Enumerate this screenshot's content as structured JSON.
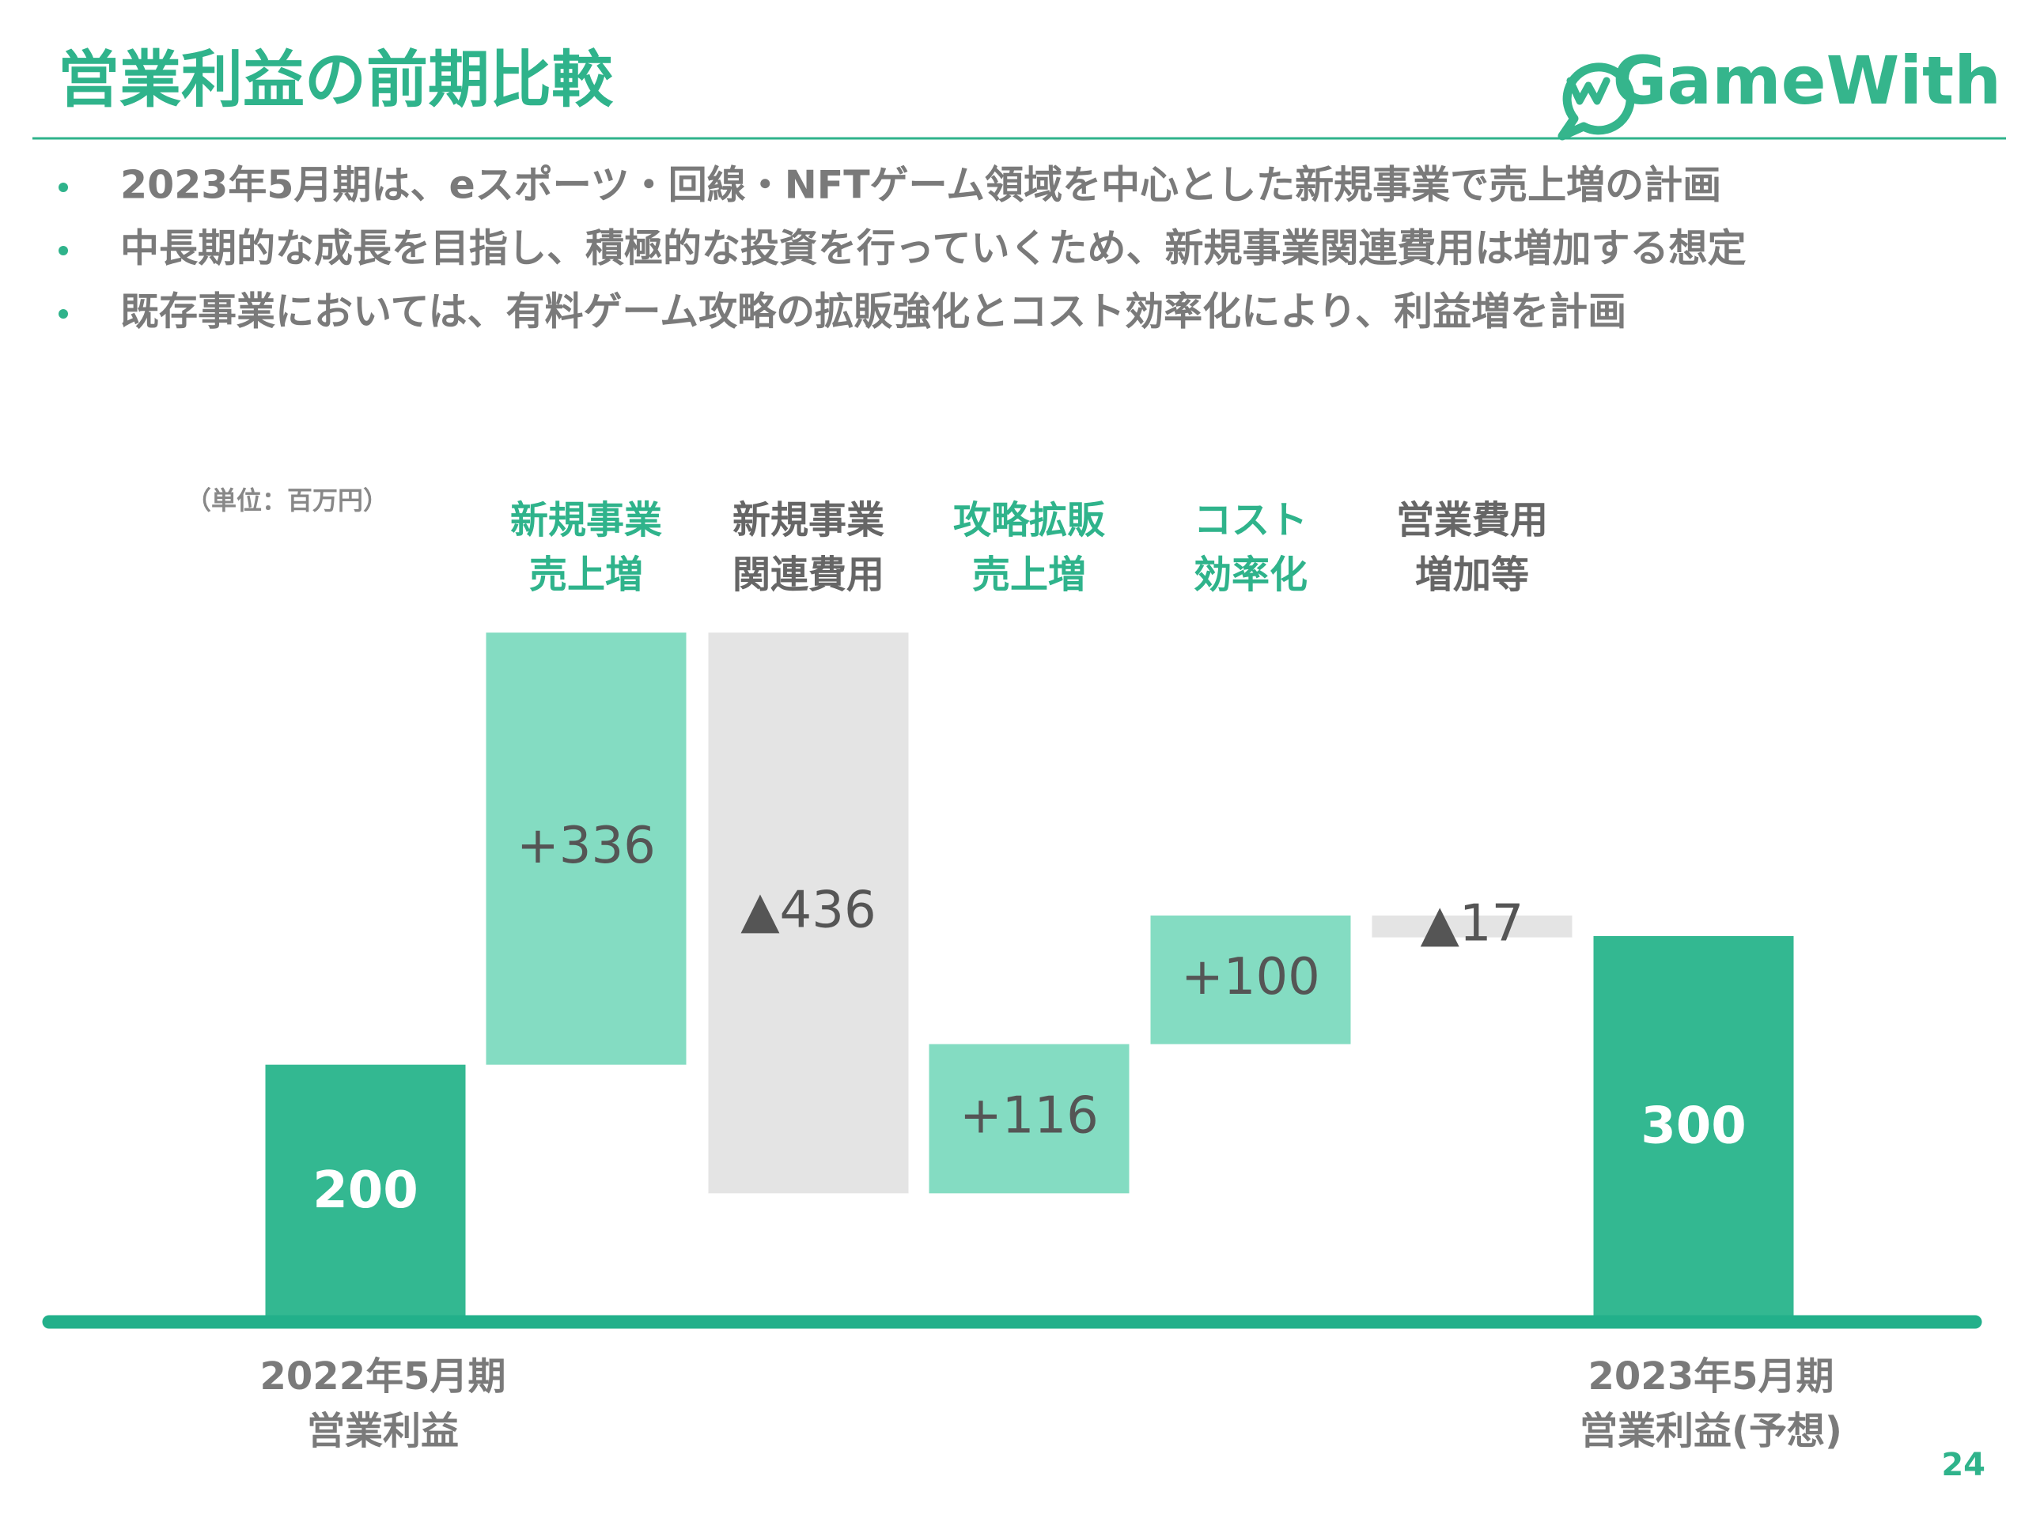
{
  "header": {
    "title": "営業利益の前期比較",
    "logo": "GameWith"
  },
  "bullets": [
    "2023年5月期は、eスポーツ・回線・NFTゲーム領域を中心とした新規事業で売上増の計画",
    "中長期的な成長を目指し、積極的な投資を行っていくため、新規事業関連費用は増加する想定",
    "既存事業においては、有料ゲーム攻略の拡販強化とコスト効率化により、利益増を計画"
  ],
  "chart_data": {
    "type": "waterfall",
    "unit_label": "（単位：百万円）",
    "categories": [
      [
        "2022年5月期",
        "営業利益"
      ],
      [
        "新規事業",
        "売上増"
      ],
      [
        "新規事業",
        "関連費用"
      ],
      [
        "攻略拡販",
        "売上増"
      ],
      [
        "コスト",
        "効率化"
      ],
      [
        "営業費用",
        "増加等"
      ],
      [
        "2023年5月期",
        "営業利益(予想)"
      ]
    ],
    "measures": [
      "total",
      "relative",
      "relative",
      "relative",
      "relative",
      "relative",
      "total"
    ],
    "values": [
      200,
      336,
      -436,
      116,
      100,
      -17,
      300
    ],
    "value_labels": [
      "200",
      "+336",
      "▲436",
      "+116",
      "+100",
      "▲17",
      "300"
    ],
    "colors": {
      "total": "#33b891",
      "increase": "#84dcc2",
      "decrease": "#e4e4e4"
    },
    "ylim": [
      0,
      600
    ]
  },
  "page_number": "24"
}
